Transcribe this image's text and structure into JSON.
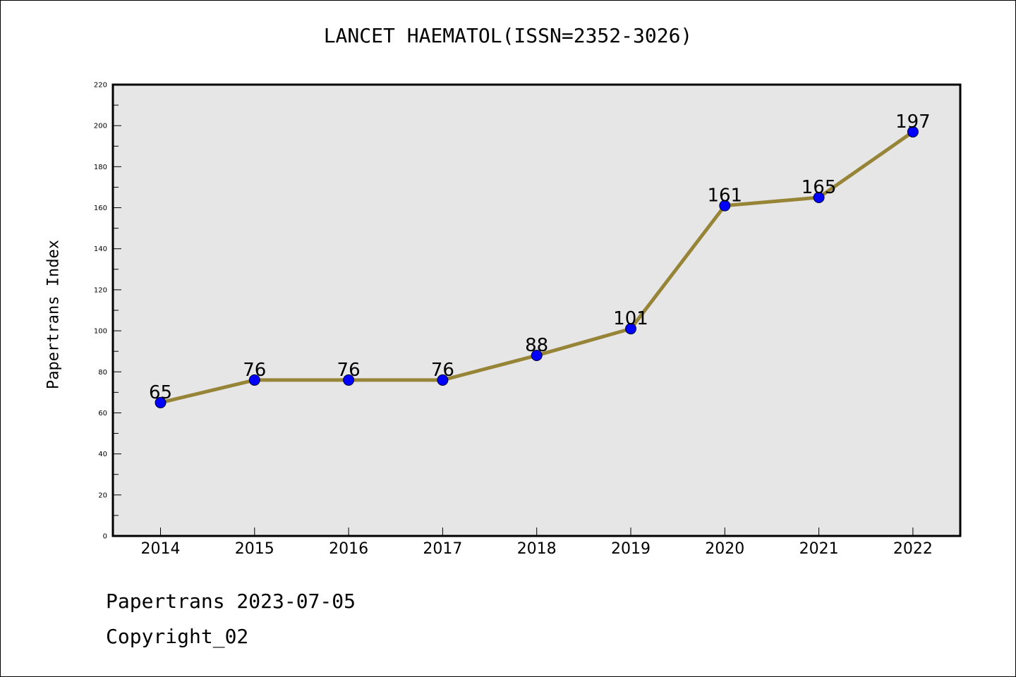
{
  "title": "LANCET HAEMATOL(ISSN=2352-3026)",
  "footer": {
    "line1": "Papertrans 2023-07-05",
    "line2": "Copyright_02"
  },
  "colors": {
    "plot_background": "#e6e6e6",
    "line": "#968437",
    "marker": "#0000ff"
  },
  "chart_data": {
    "type": "line",
    "title": "LANCET HAEMATOL(ISSN=2352-3026)",
    "xlabel": "",
    "ylabel": "Papertrans Index",
    "x": [
      "2014",
      "2015",
      "2016",
      "2017",
      "2018",
      "2019",
      "2020",
      "2021",
      "2022"
    ],
    "series": [
      {
        "values": [
          65,
          76,
          76,
          76,
          88,
          101,
          161,
          165,
          197
        ]
      }
    ],
    "data_labels": [
      "65",
      "76",
      "76",
      "76",
      "88",
      "101",
      "161",
      "165",
      "197"
    ],
    "ylim": [
      0,
      220
    ],
    "yticks": [
      0,
      20,
      40,
      60,
      80,
      100,
      120,
      140,
      160,
      180,
      200,
      220
    ],
    "ytick_labels": [
      "0",
      "20",
      "40",
      "60",
      "80",
      "100",
      "120",
      "140",
      "160",
      "180",
      "200",
      "220"
    ],
    "grid": false,
    "legend": "none"
  }
}
